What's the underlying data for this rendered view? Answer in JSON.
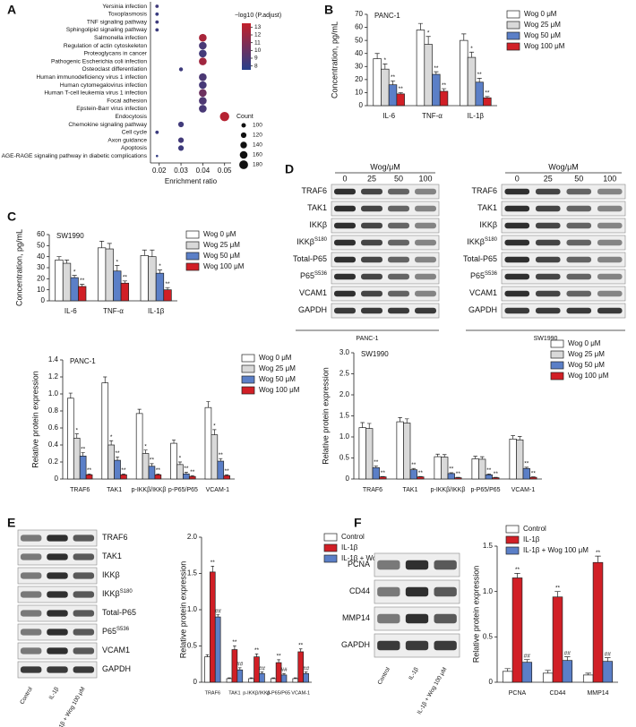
{
  "panel_labels": [
    "A",
    "B",
    "C",
    "D",
    "E",
    "F"
  ],
  "chart_data": [
    {
      "type": "dot",
      "xlabel": "Enrichment ratio",
      "categories": [
        "Yersinia infection",
        "Toxoplasmosis",
        "TNF signaling pathway",
        "Sphingolipid signaling pathway",
        "Salmonella infection",
        "Regulation of actin cytoskeleton",
        "Proteoglycans in cancer",
        "Pathogenic Escherichia coli infection",
        "Osteoclast differentiation",
        "Human immunodeficiency virus 1 infection",
        "Human cytomegalovirus infection",
        "Human T-cell leukemia virus 1 infection",
        "Focal adhesion",
        "Epstein-Barr virus infection",
        "Endocytosis",
        "Chemokine signaling pathway",
        "Cell cycle",
        "Axon guidance",
        "Apoptosis",
        "AGE-RAGE signaling pathway in diabetic complications"
      ],
      "x": [
        0.019,
        0.019,
        0.019,
        0.019,
        0.04,
        0.04,
        0.04,
        0.04,
        0.03,
        0.04,
        0.04,
        0.04,
        0.04,
        0.04,
        0.05,
        0.03,
        0.019,
        0.03,
        0.03,
        0.019
      ],
      "p_adjust": [
        8.5,
        8.2,
        8.4,
        8.3,
        12.5,
        8.8,
        8.6,
        12.2,
        8.4,
        8.9,
        8.7,
        10.2,
        9.0,
        8.8,
        13.0,
        8.5,
        8.3,
        8.6,
        8.4,
        8.0
      ],
      "count": [
        80,
        80,
        80,
        80,
        160,
        160,
        160,
        160,
        90,
        160,
        160,
        160,
        160,
        160,
        190,
        120,
        80,
        120,
        120,
        60
      ],
      "xlim": [
        0.016,
        0.053
      ],
      "xticks": [
        0.02,
        0.03,
        0.04,
        0.05
      ],
      "colorbar": {
        "title": "−log10 (P.adjust)",
        "lim": [
          7.5,
          13.5
        ],
        "ticks": [
          13,
          12,
          11,
          10,
          9,
          8
        ],
        "colors": [
          "#27408b",
          "#c21f2a"
        ]
      },
      "size_legend": {
        "title": "Count",
        "values": [
          100,
          120,
          140,
          160,
          180
        ]
      }
    },
    {
      "type": "bar",
      "subtitle": "PANC-1",
      "ylabel": "Concentration, pg/mL",
      "categories": [
        "IL-6",
        "TNF-α",
        "IL-1β"
      ],
      "ylim": [
        0,
        70
      ],
      "yticks": [
        0,
        10,
        20,
        30,
        40,
        50,
        60,
        70
      ],
      "series": [
        {
          "name": "Wog 0 μM",
          "color": "#ffffff",
          "values": [
            36,
            58,
            50
          ],
          "errors": [
            4,
            5,
            5
          ]
        },
        {
          "name": "Wog 25 μM",
          "color": "#d9d9d9",
          "values": [
            28,
            47,
            37
          ],
          "errors": [
            4,
            6,
            4
          ],
          "sig": [
            "*",
            "*",
            "*"
          ]
        },
        {
          "name": "Wog 50 μM",
          "color": "#5b7fc7",
          "values": [
            16,
            24,
            18
          ],
          "errors": [
            3,
            2,
            3
          ],
          "sig": [
            "**",
            "**",
            "**"
          ]
        },
        {
          "name": "Wog 100 μM",
          "color": "#d11f26",
          "values": [
            9,
            11,
            6
          ],
          "errors": [
            1,
            2,
            1
          ],
          "sig": [
            "**",
            "**",
            "**"
          ]
        }
      ]
    },
    {
      "type": "bar",
      "subtitle": "SW1990",
      "ylabel": "Concentration, pg/mL",
      "categories": [
        "IL-6",
        "TNF-α",
        "IL-1β"
      ],
      "ylim": [
        0,
        60
      ],
      "yticks": [
        0,
        10,
        20,
        30,
        40,
        50,
        60
      ],
      "series": [
        {
          "name": "Wog 0 μM",
          "color": "#ffffff",
          "values": [
            37,
            48,
            41
          ],
          "errors": [
            3,
            6,
            5
          ]
        },
        {
          "name": "Wog 25 μM",
          "color": "#d9d9d9",
          "values": [
            34,
            47,
            40
          ],
          "errors": [
            3,
            5,
            6
          ]
        },
        {
          "name": "Wog 50 μM",
          "color": "#5b7fc7",
          "values": [
            21,
            27,
            25
          ],
          "errors": [
            2,
            5,
            3
          ],
          "sig": [
            "*",
            "*",
            "*"
          ]
        },
        {
          "name": "Wog 100 μM",
          "color": "#d11f26",
          "values": [
            13,
            16,
            10
          ],
          "errors": [
            2,
            2,
            2
          ],
          "sig": [
            "**",
            "**",
            "**"
          ]
        }
      ]
    },
    {
      "type": "bar",
      "subtitle": "PANC-1",
      "ylabel": "Relative protein expression",
      "categories": [
        "TRAF6",
        "TAK1",
        "p-IKKβ/IKKβ",
        "p-P65/P65",
        "VCAM-1"
      ],
      "ylim": [
        0,
        1.4
      ],
      "yticks": [
        0,
        0.2,
        0.4,
        0.6,
        0.8,
        {
          "value": 1,
          "label": "1.0"
        },
        1.2,
        1.4
      ],
      "series": [
        {
          "name": "Wog 0 μM",
          "color": "#ffffff",
          "values": [
            0.95,
            1.13,
            0.77,
            0.42,
            0.84
          ],
          "errors": [
            0.06,
            0.07,
            0.05,
            0.04,
            0.07
          ]
        },
        {
          "name": "Wog 25 μM",
          "color": "#d9d9d9",
          "values": [
            0.48,
            0.4,
            0.3,
            0.17,
            0.52
          ],
          "errors": [
            0.05,
            0.05,
            0.04,
            0.03,
            0.06
          ],
          "sig": [
            "*",
            "*",
            "*",
            "*",
            "*"
          ]
        },
        {
          "name": "Wog 50 μM",
          "color": "#5b7fc7",
          "values": [
            0.27,
            0.22,
            0.15,
            0.06,
            0.21
          ],
          "errors": [
            0.04,
            0.04,
            0.03,
            0.02,
            0.03
          ],
          "sig": [
            "**",
            "**",
            "**",
            "**",
            "**"
          ]
        },
        {
          "name": "Wog 100 μM",
          "color": "#d11f26",
          "values": [
            0.05,
            0.05,
            0.05,
            0.03,
            0.04
          ],
          "errors": [
            0.01,
            0.01,
            0.01,
            0.01,
            0.01
          ],
          "sig": [
            "**",
            "**",
            "**",
            "**",
            "**"
          ]
        }
      ]
    },
    {
      "type": "bar",
      "subtitle": "SW1990",
      "ylabel": "Relative protein expression",
      "categories": [
        "TRAF6",
        "TAK1",
        "p-IKKβ/IKKβ",
        "p-P65/P65",
        "VCAM-1"
      ],
      "ylim": [
        0,
        3
      ],
      "yticks": [
        0,
        0.5,
        {
          "value": 1,
          "label": "1.0"
        },
        1.5,
        {
          "value": 2,
          "label": "2.0"
        },
        2.5,
        {
          "value": 3,
          "label": "3.0"
        }
      ],
      "series": [
        {
          "name": "Wog 0 μM",
          "color": "#ffffff",
          "values": [
            1.22,
            1.36,
            0.53,
            0.48,
            0.95
          ],
          "errors": [
            0.12,
            0.1,
            0.06,
            0.06,
            0.08
          ]
        },
        {
          "name": "Wog 25 μM",
          "color": "#d9d9d9",
          "values": [
            1.2,
            1.33,
            0.52,
            0.47,
            0.93
          ],
          "errors": [
            0.12,
            0.1,
            0.06,
            0.06,
            0.08
          ]
        },
        {
          "name": "Wog 50 μM",
          "color": "#5b7fc7",
          "values": [
            0.27,
            0.22,
            0.13,
            0.1,
            0.25
          ],
          "errors": [
            0.04,
            0.03,
            0.02,
            0.02,
            0.03
          ],
          "sig": [
            "**",
            "**",
            "**",
            "**",
            "**"
          ]
        },
        {
          "name": "Wog 100 μM",
          "color": "#d11f26",
          "values": [
            0.05,
            0.05,
            0.03,
            0.03,
            0.04
          ],
          "errors": [
            0.01,
            0.01,
            0.01,
            0.01,
            0.01
          ],
          "sig": [
            "**",
            "**",
            "**",
            "**",
            "**"
          ]
        }
      ]
    },
    {
      "type": "bar",
      "ylabel": "Relative protein expression",
      "categories": [
        "TRAF6",
        "TAK1",
        "p-IKKβ/IKKβ",
        "p-P65/P65",
        "VCAM-1"
      ],
      "ylim": [
        0,
        2
      ],
      "yticks": [
        0,
        0.5,
        {
          "value": 1,
          "label": "1.0"
        },
        1.5,
        {
          "value": 2,
          "label": "2.0"
        }
      ],
      "series": [
        {
          "name": "Control",
          "color": "#ffffff",
          "values": [
            0.35,
            0.05,
            0.05,
            0.05,
            0.05
          ],
          "errors": [
            0.03,
            0.01,
            0.01,
            0.01,
            0.01
          ]
        },
        {
          "name": "IL-1β",
          "color": "#d11f26",
          "values": [
            1.52,
            0.45,
            0.35,
            0.27,
            0.42
          ],
          "errors": [
            0.08,
            0.05,
            0.04,
            0.04,
            0.04
          ],
          "sig": [
            "**",
            "**",
            "**",
            "**",
            "**"
          ]
        },
        {
          "name": "IL-1β + Wog 100 μM",
          "color": "#5b7fc7",
          "values": [
            0.9,
            0.17,
            0.12,
            0.1,
            0.12
          ],
          "errors": [
            0.03,
            0.03,
            0.02,
            0.02,
            0.02
          ],
          "sig": [
            "##",
            "##",
            "##",
            "##",
            "##"
          ]
        }
      ]
    },
    {
      "type": "bar",
      "ylabel": "Relative protein expression",
      "categories": [
        "PCNA",
        "CD44",
        "MMP14"
      ],
      "ylim": [
        0,
        1.5
      ],
      "yticks": [
        0,
        0.5,
        {
          "value": 1,
          "label": "1.0"
        },
        1.5
      ],
      "series": [
        {
          "name": "Control",
          "color": "#ffffff",
          "values": [
            0.12,
            0.1,
            0.08
          ],
          "errors": [
            0.03,
            0.03,
            0.02
          ]
        },
        {
          "name": "IL-1β",
          "color": "#d11f26",
          "values": [
            1.15,
            0.94,
            1.32
          ],
          "errors": [
            0.05,
            0.06,
            0.07
          ],
          "sig": [
            "**",
            "**",
            "**"
          ]
        },
        {
          "name": "IL-1β + Wog 100 μM",
          "color": "#5b7fc7",
          "values": [
            0.22,
            0.24,
            0.23
          ],
          "errors": [
            0.03,
            0.04,
            0.04
          ],
          "sig": [
            "##",
            "##",
            "##"
          ]
        }
      ]
    }
  ],
  "blots": [
    {
      "header": "Wog/μM",
      "lanes": [
        "0",
        "25",
        "50",
        "100"
      ],
      "caption": "PANC-1",
      "rows": [
        {
          "label": "TRAF6"
        },
        {
          "label": "TAK1"
        },
        {
          "label": "IKKβ"
        },
        {
          "label": "IKKβ",
          "sup": "S180"
        },
        {
          "label": "Total-P65"
        },
        {
          "label": "P65",
          "sup": "S536"
        },
        {
          "label": "VCAM1"
        },
        {
          "label": "GAPDH"
        }
      ]
    },
    {
      "header": "Wog/μM",
      "lanes": [
        "0",
        "25",
        "50",
        "100"
      ],
      "caption": "SW1990",
      "rows": [
        {
          "label": "TRAF6"
        },
        {
          "label": "TAK1"
        },
        {
          "label": "IKKβ"
        },
        {
          "label": "IKKβ",
          "sup": "S180"
        },
        {
          "label": "Total-P65"
        },
        {
          "label": "P65",
          "sup": "S536"
        },
        {
          "label": "VCAM1"
        },
        {
          "label": "GAPDH"
        }
      ]
    },
    {
      "lanes": [
        "Control",
        "IL-1β",
        "IL-1β + Wog 100 μM"
      ],
      "rows": [
        {
          "label": "TRAF6"
        },
        {
          "label": "TAK1"
        },
        {
          "label": "IKKβ"
        },
        {
          "label": "IKKβ",
          "sup": "S180"
        },
        {
          "label": "Total-P65"
        },
        {
          "label": "P65",
          "sup": "S536"
        },
        {
          "label": "VCAM1"
        },
        {
          "label": "GAPDH"
        }
      ]
    },
    {
      "lanes": [
        "Control",
        "IL-1β",
        "IL-1β + Wog 100 μM"
      ],
      "rows": [
        {
          "label": "PCNA"
        },
        {
          "label": "CD44"
        },
        {
          "label": "MMP14"
        },
        {
          "label": "GAPDH"
        }
      ]
    }
  ]
}
